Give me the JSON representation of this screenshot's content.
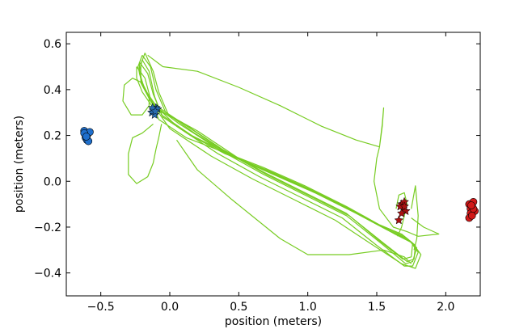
{
  "chart_data": {
    "type": "scatter",
    "title": "",
    "xlabel": "position (meters)",
    "ylabel": "position (meters)",
    "xlim": [
      -0.75,
      2.25
    ],
    "ylim": [
      -0.5,
      0.65
    ],
    "xticks": [
      {
        "value": -0.5,
        "label": "−0.5"
      },
      {
        "value": 0.0,
        "label": "0.0"
      },
      {
        "value": 0.5,
        "label": "0.5"
      },
      {
        "value": 1.0,
        "label": "1.0"
      },
      {
        "value": 1.5,
        "label": "1.5"
      },
      {
        "value": 2.0,
        "label": "2.0"
      }
    ],
    "yticks": [
      {
        "value": -0.4,
        "label": "−0.4"
      },
      {
        "value": -0.2,
        "label": "−0.2"
      },
      {
        "value": 0.0,
        "label": "0.0"
      },
      {
        "value": 0.2,
        "label": "0.2"
      },
      {
        "value": 0.4,
        "label": "0.4"
      },
      {
        "value": 0.6,
        "label": "0.6"
      }
    ],
    "grid": false,
    "legend": "none",
    "colors": {
      "trajectory": "#77cc22",
      "blue_points": "#1f6fcc",
      "red_points": "#d11919",
      "blue_stars": "#2a6cb0",
      "red_stars": "#aa1111"
    },
    "series": [
      {
        "marker": "circle",
        "color": "#1f6fcc",
        "points": [
          [
            -0.62,
            0.22
          ],
          [
            -0.6,
            0.2
          ],
          [
            -0.58,
            0.215
          ],
          [
            -0.61,
            0.19
          ],
          [
            -0.6,
            0.18
          ],
          [
            -0.59,
            0.175
          ],
          [
            -0.62,
            0.21
          ],
          [
            -0.605,
            0.195
          ]
        ]
      },
      {
        "marker": "circle",
        "color": "#d11919",
        "points": [
          [
            2.17,
            -0.1
          ],
          [
            2.2,
            -0.09
          ],
          [
            2.19,
            -0.11
          ],
          [
            2.18,
            -0.12
          ],
          [
            2.21,
            -0.13
          ],
          [
            2.18,
            -0.14
          ],
          [
            2.17,
            -0.16
          ],
          [
            2.19,
            -0.15
          ],
          [
            2.2,
            -0.12
          ],
          [
            2.185,
            -0.105
          ]
        ]
      },
      {
        "marker": "star",
        "color": "#2a6cb0",
        "points": [
          [
            -0.12,
            0.31
          ],
          [
            -0.1,
            0.32
          ],
          [
            -0.13,
            0.3
          ],
          [
            -0.11,
            0.29
          ],
          [
            -0.09,
            0.315
          ],
          [
            -0.125,
            0.32
          ],
          [
            -0.105,
            0.305
          ]
        ]
      },
      {
        "marker": "star",
        "color": "#aa1111",
        "points": [
          [
            1.68,
            -0.1
          ],
          [
            1.7,
            -0.09
          ],
          [
            1.69,
            -0.12
          ],
          [
            1.67,
            -0.11
          ],
          [
            1.71,
            -0.13
          ],
          [
            1.68,
            -0.14
          ],
          [
            1.7,
            -0.11
          ],
          [
            1.66,
            -0.17
          ]
        ]
      }
    ],
    "trajectories": [
      [
        [
          -0.22,
          0.52
        ],
        [
          -0.16,
          0.47
        ],
        [
          -0.12,
          0.38
        ],
        [
          -0.05,
          0.28
        ],
        [
          0.15,
          0.2
        ],
        [
          0.4,
          0.12
        ],
        [
          0.7,
          0.05
        ],
        [
          1.0,
          -0.03
        ],
        [
          1.3,
          -0.12
        ],
        [
          1.55,
          -0.2
        ],
        [
          1.7,
          -0.24
        ],
        [
          1.78,
          -0.28
        ],
        [
          1.77,
          -0.34
        ],
        [
          1.72,
          -0.35
        ],
        [
          1.55,
          -0.27
        ],
        [
          1.3,
          -0.15
        ],
        [
          1.0,
          -0.06
        ],
        [
          0.7,
          0.03
        ],
        [
          0.4,
          0.13
        ],
        [
          0.1,
          0.25
        ],
        [
          -0.1,
          0.33
        ],
        [
          -0.18,
          0.4
        ],
        [
          -0.22,
          0.47
        ],
        [
          -0.22,
          0.52
        ]
      ],
      [
        [
          -0.2,
          0.55
        ],
        [
          -0.14,
          0.5
        ],
        [
          -0.1,
          0.4
        ],
        [
          -0.03,
          0.3
        ],
        [
          0.18,
          0.21
        ],
        [
          0.45,
          0.11
        ],
        [
          0.75,
          0.03
        ],
        [
          1.05,
          -0.05
        ],
        [
          1.35,
          -0.14
        ],
        [
          1.6,
          -0.22
        ],
        [
          1.74,
          -0.26
        ],
        [
          1.8,
          -0.31
        ],
        [
          1.76,
          -0.37
        ],
        [
          1.7,
          -0.37
        ],
        [
          1.5,
          -0.28
        ],
        [
          1.25,
          -0.16
        ],
        [
          0.95,
          -0.07
        ],
        [
          0.65,
          0.02
        ],
        [
          0.35,
          0.12
        ],
        [
          0.05,
          0.24
        ],
        [
          -0.12,
          0.34
        ],
        [
          -0.2,
          0.42
        ],
        [
          -0.23,
          0.5
        ],
        [
          -0.2,
          0.55
        ]
      ],
      [
        [
          -0.24,
          0.5
        ],
        [
          -0.18,
          0.45
        ],
        [
          -0.14,
          0.36
        ],
        [
          -0.08,
          0.27
        ],
        [
          0.12,
          0.19
        ],
        [
          0.38,
          0.13
        ],
        [
          0.68,
          0.06
        ],
        [
          0.98,
          -0.02
        ],
        [
          1.28,
          -0.11
        ],
        [
          1.52,
          -0.19
        ],
        [
          1.68,
          -0.23
        ],
        [
          1.76,
          -0.27
        ],
        [
          1.75,
          -0.33
        ],
        [
          1.69,
          -0.34
        ],
        [
          1.52,
          -0.26
        ],
        [
          1.28,
          -0.14
        ],
        [
          0.98,
          -0.05
        ],
        [
          0.68,
          0.04
        ],
        [
          0.38,
          0.14
        ],
        [
          0.08,
          0.26
        ],
        [
          -0.12,
          0.32
        ],
        [
          -0.2,
          0.39
        ],
        [
          -0.24,
          0.45
        ],
        [
          -0.24,
          0.5
        ]
      ],
      [
        [
          -0.18,
          0.56
        ],
        [
          -0.12,
          0.48
        ],
        [
          -0.08,
          0.39
        ],
        [
          -0.01,
          0.29
        ],
        [
          0.2,
          0.22
        ],
        [
          0.5,
          0.1
        ],
        [
          0.8,
          0.02
        ],
        [
          1.1,
          -0.06
        ],
        [
          1.4,
          -0.15
        ],
        [
          1.63,
          -0.23
        ],
        [
          1.76,
          -0.27
        ],
        [
          1.82,
          -0.32
        ],
        [
          1.78,
          -0.38
        ],
        [
          1.68,
          -0.36
        ],
        [
          1.45,
          -0.27
        ],
        [
          1.2,
          -0.17
        ],
        [
          0.9,
          -0.08
        ],
        [
          0.6,
          0.01
        ],
        [
          0.3,
          0.11
        ],
        [
          0.0,
          0.23
        ],
        [
          -0.14,
          0.35
        ],
        [
          -0.21,
          0.43
        ],
        [
          -0.21,
          0.51
        ],
        [
          -0.18,
          0.56
        ]
      ],
      [
        [
          -0.2,
          0.53
        ],
        [
          -0.15,
          0.48
        ],
        [
          -0.11,
          0.37
        ],
        [
          -0.06,
          0.29
        ],
        [
          0.16,
          0.2
        ],
        [
          0.42,
          0.12
        ],
        [
          0.72,
          0.04
        ],
        [
          1.02,
          -0.04
        ],
        [
          1.32,
          -0.13
        ],
        [
          1.57,
          -0.21
        ],
        [
          1.72,
          -0.25
        ],
        [
          1.79,
          -0.29
        ],
        [
          1.76,
          -0.35
        ],
        [
          1.71,
          -0.36
        ],
        [
          1.53,
          -0.27
        ],
        [
          1.28,
          -0.15
        ],
        [
          0.98,
          -0.06
        ],
        [
          0.68,
          0.03
        ],
        [
          0.38,
          0.13
        ],
        [
          0.07,
          0.25
        ],
        [
          -0.11,
          0.33
        ],
        [
          -0.19,
          0.41
        ],
        [
          -0.22,
          0.48
        ],
        [
          -0.2,
          0.53
        ]
      ],
      [
        [
          -0.16,
          0.55
        ],
        [
          -0.05,
          0.5
        ],
        [
          0.2,
          0.48
        ],
        [
          0.5,
          0.41
        ],
        [
          0.8,
          0.33
        ],
        [
          1.1,
          0.24
        ],
        [
          1.35,
          0.18
        ],
        [
          1.52,
          0.15
        ],
        [
          1.5,
          0.1
        ],
        [
          1.48,
          0.0
        ],
        [
          1.52,
          -0.12
        ],
        [
          1.62,
          -0.2
        ],
        [
          1.72,
          -0.22
        ],
        [
          1.8,
          -0.24
        ],
        [
          1.95,
          -0.23
        ],
        [
          1.84,
          -0.2
        ],
        [
          1.75,
          -0.16
        ]
      ],
      [
        [
          1.52,
          0.15
        ],
        [
          1.54,
          0.25
        ],
        [
          1.55,
          0.32
        ],
        [
          1.54,
          0.24
        ],
        [
          1.52,
          0.15
        ]
      ],
      [
        [
          -0.15,
          0.37
        ],
        [
          -0.2,
          0.43
        ],
        [
          -0.27,
          0.45
        ],
        [
          -0.33,
          0.42
        ],
        [
          -0.34,
          0.35
        ],
        [
          -0.28,
          0.29
        ],
        [
          -0.2,
          0.29
        ],
        [
          -0.15,
          0.33
        ],
        [
          -0.15,
          0.37
        ]
      ],
      [
        [
          -0.12,
          0.25
        ],
        [
          -0.2,
          0.21
        ],
        [
          -0.27,
          0.19
        ],
        [
          -0.3,
          0.12
        ],
        [
          -0.3,
          0.03
        ],
        [
          -0.24,
          -0.01
        ],
        [
          -0.16,
          0.02
        ],
        [
          -0.12,
          0.08
        ],
        [
          -0.1,
          0.14
        ],
        [
          -0.08,
          0.19
        ],
        [
          -0.06,
          0.25
        ]
      ],
      [
        [
          0.05,
          0.18
        ],
        [
          0.2,
          0.05
        ],
        [
          0.45,
          -0.08
        ],
        [
          0.8,
          -0.25
        ],
        [
          1.0,
          -0.32
        ],
        [
          1.3,
          -0.32
        ],
        [
          1.55,
          -0.3
        ],
        [
          1.7,
          -0.33
        ],
        [
          1.75,
          -0.36
        ]
      ],
      [
        [
          1.64,
          -0.12
        ],
        [
          1.66,
          -0.06
        ],
        [
          1.7,
          -0.05
        ],
        [
          1.72,
          -0.1
        ],
        [
          1.68,
          -0.2
        ],
        [
          1.65,
          -0.24
        ]
      ],
      [
        [
          1.75,
          -0.12
        ],
        [
          1.78,
          -0.02
        ],
        [
          1.8,
          -0.15
        ],
        [
          1.79,
          -0.25
        ],
        [
          1.77,
          -0.3
        ]
      ]
    ]
  }
}
